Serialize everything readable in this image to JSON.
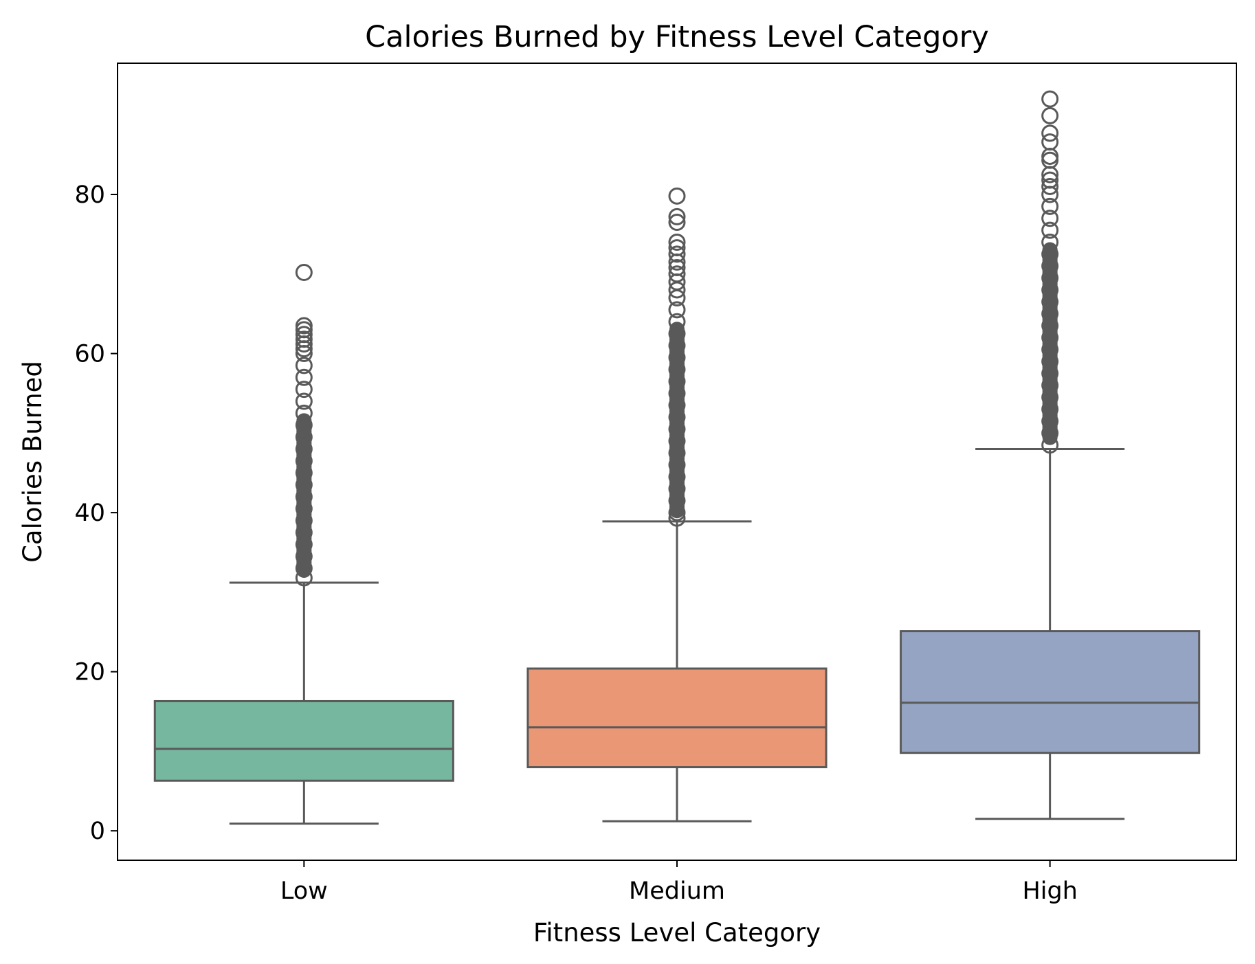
{
  "chart_data": {
    "type": "box",
    "title": "Calories Burned by Fitness Level Category",
    "xlabel": "Fitness Level Category",
    "ylabel": "Calories Burned",
    "ylim": [
      -3.7,
      96.5
    ],
    "yticks": [
      0,
      20,
      40,
      60,
      80
    ],
    "grid": false,
    "legend": "none",
    "box_edge_color": "#595959",
    "categories": [
      "Low",
      "Medium",
      "High"
    ],
    "boxes": [
      {
        "category": "Low",
        "color": "#76b7a0",
        "whisker_low": 0.9,
        "q1": 6.3,
        "median": 10.3,
        "q3": 16.3,
        "whisker_high": 31.2,
        "outliers": [
          70.2,
          63.5,
          63.0,
          62.4,
          61.8,
          61.2,
          60.6,
          60.0,
          58.5,
          57.0,
          55.5,
          54.0,
          52.5,
          51.0,
          49.5,
          48.0,
          46.5,
          45.0,
          43.5,
          42.0,
          40.5,
          39.0,
          37.5,
          36.0,
          34.5,
          33.0,
          31.8
        ]
      },
      {
        "category": "Medium",
        "color": "#ea9776",
        "whisker_low": 1.2,
        "q1": 8.0,
        "median": 13.0,
        "q3": 20.4,
        "whisker_high": 38.9,
        "outliers": [
          79.8,
          77.2,
          76.5,
          74.0,
          73.3,
          72.5,
          71.5,
          70.8,
          70.0,
          69.0,
          68.0,
          67.0,
          65.5,
          64.0,
          62.5,
          61.0,
          59.5,
          58.0,
          56.5,
          55.0,
          53.5,
          52.0,
          50.5,
          49.0,
          47.5,
          46.0,
          44.5,
          43.0,
          41.5,
          40.0,
          39.3
        ]
      },
      {
        "category": "High",
        "color": "#96a4c3",
        "whisker_low": 1.5,
        "q1": 9.8,
        "median": 16.1,
        "q3": 25.1,
        "whisker_high": 48.0,
        "outliers": [
          92.0,
          89.9,
          87.7,
          86.6,
          84.8,
          84.3,
          82.5,
          81.8,
          81.0,
          80.0,
          78.5,
          77.0,
          75.5,
          74.0,
          72.5,
          71.0,
          69.5,
          68.0,
          66.5,
          65.0,
          63.5,
          62.0,
          60.5,
          59.0,
          57.5,
          56.0,
          54.5,
          53.0,
          51.5,
          50.0,
          48.5
        ]
      }
    ]
  }
}
